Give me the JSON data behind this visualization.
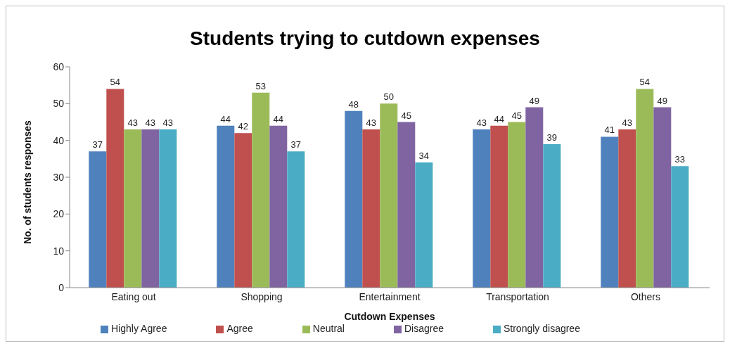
{
  "chart_data": {
    "type": "bar",
    "title": "Students trying to cutdown expenses",
    "xlabel": "Cutdown Expenses",
    "ylabel": "No. of students responses",
    "categories": [
      "Eating out",
      "Shopping",
      "Entertainment",
      "Transportation",
      "Others"
    ],
    "series": [
      {
        "name": "Highly Agree",
        "color": "#4f81bd",
        "values": [
          37,
          44,
          48,
          43,
          41
        ]
      },
      {
        "name": "Agree",
        "color": "#c0504d",
        "values": [
          54,
          42,
          43,
          44,
          43
        ]
      },
      {
        "name": "Neutral",
        "color": "#9bbb59",
        "values": [
          43,
          53,
          50,
          45,
          54
        ]
      },
      {
        "name": "Disagree",
        "color": "#8064a2",
        "values": [
          43,
          44,
          45,
          49,
          49
        ]
      },
      {
        "name": "Strongly disagree",
        "color": "#4bacc6",
        "values": [
          43,
          37,
          34,
          39,
          33
        ]
      }
    ],
    "ylim": [
      0,
      60
    ],
    "yticks": [
      0,
      10,
      20,
      30,
      40,
      50,
      60
    ],
    "grid": false,
    "legend": "bottom",
    "data_labels": true
  }
}
